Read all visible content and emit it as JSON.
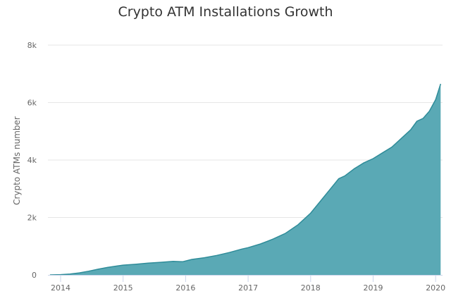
{
  "chart_data": {
    "type": "area",
    "title": "Crypto ATM Installations Growth",
    "xlabel": "",
    "ylabel": "Crypto ATMs number",
    "ylim": [
      0,
      8000
    ],
    "xlim": [
      2013.83,
      2020.08
    ],
    "yticks": [
      0,
      2000,
      4000,
      6000,
      8000
    ],
    "ytick_labels": [
      "0",
      "2k",
      "4k",
      "6k",
      "8k"
    ],
    "xticks": [
      2014,
      2015,
      2016,
      2017,
      2018,
      2019,
      2020
    ],
    "xtick_labels": [
      "2014",
      "2015",
      "2016",
      "2017",
      "2018",
      "2019",
      "2020"
    ],
    "grid": true,
    "legend": null,
    "series": [
      {
        "name": "Crypto ATMs number",
        "color": "#5aa9b5",
        "line_color": "#2f8c99",
        "x": [
          2013.83,
          2014.0,
          2014.15,
          2014.3,
          2014.45,
          2014.6,
          2014.75,
          2014.9,
          2015.0,
          2015.2,
          2015.4,
          2015.6,
          2015.8,
          2015.95,
          2016.1,
          2016.3,
          2016.5,
          2016.7,
          2016.9,
          2017.0,
          2017.2,
          2017.4,
          2017.6,
          2017.8,
          2018.0,
          2018.15,
          2018.3,
          2018.45,
          2018.55,
          2018.7,
          2018.85,
          2019.0,
          2019.15,
          2019.3,
          2019.45,
          2019.6,
          2019.7,
          2019.8,
          2019.9,
          2020.0,
          2020.08
        ],
        "values": [
          0,
          10,
          30,
          70,
          130,
          200,
          260,
          310,
          340,
          370,
          410,
          440,
          470,
          460,
          540,
          600,
          680,
          780,
          900,
          950,
          1080,
          1250,
          1450,
          1750,
          2150,
          2550,
          2950,
          3350,
          3450,
          3700,
          3900,
          4050,
          4250,
          4450,
          4750,
          5050,
          5350,
          5450,
          5700,
          6100,
          6650
        ]
      }
    ]
  }
}
